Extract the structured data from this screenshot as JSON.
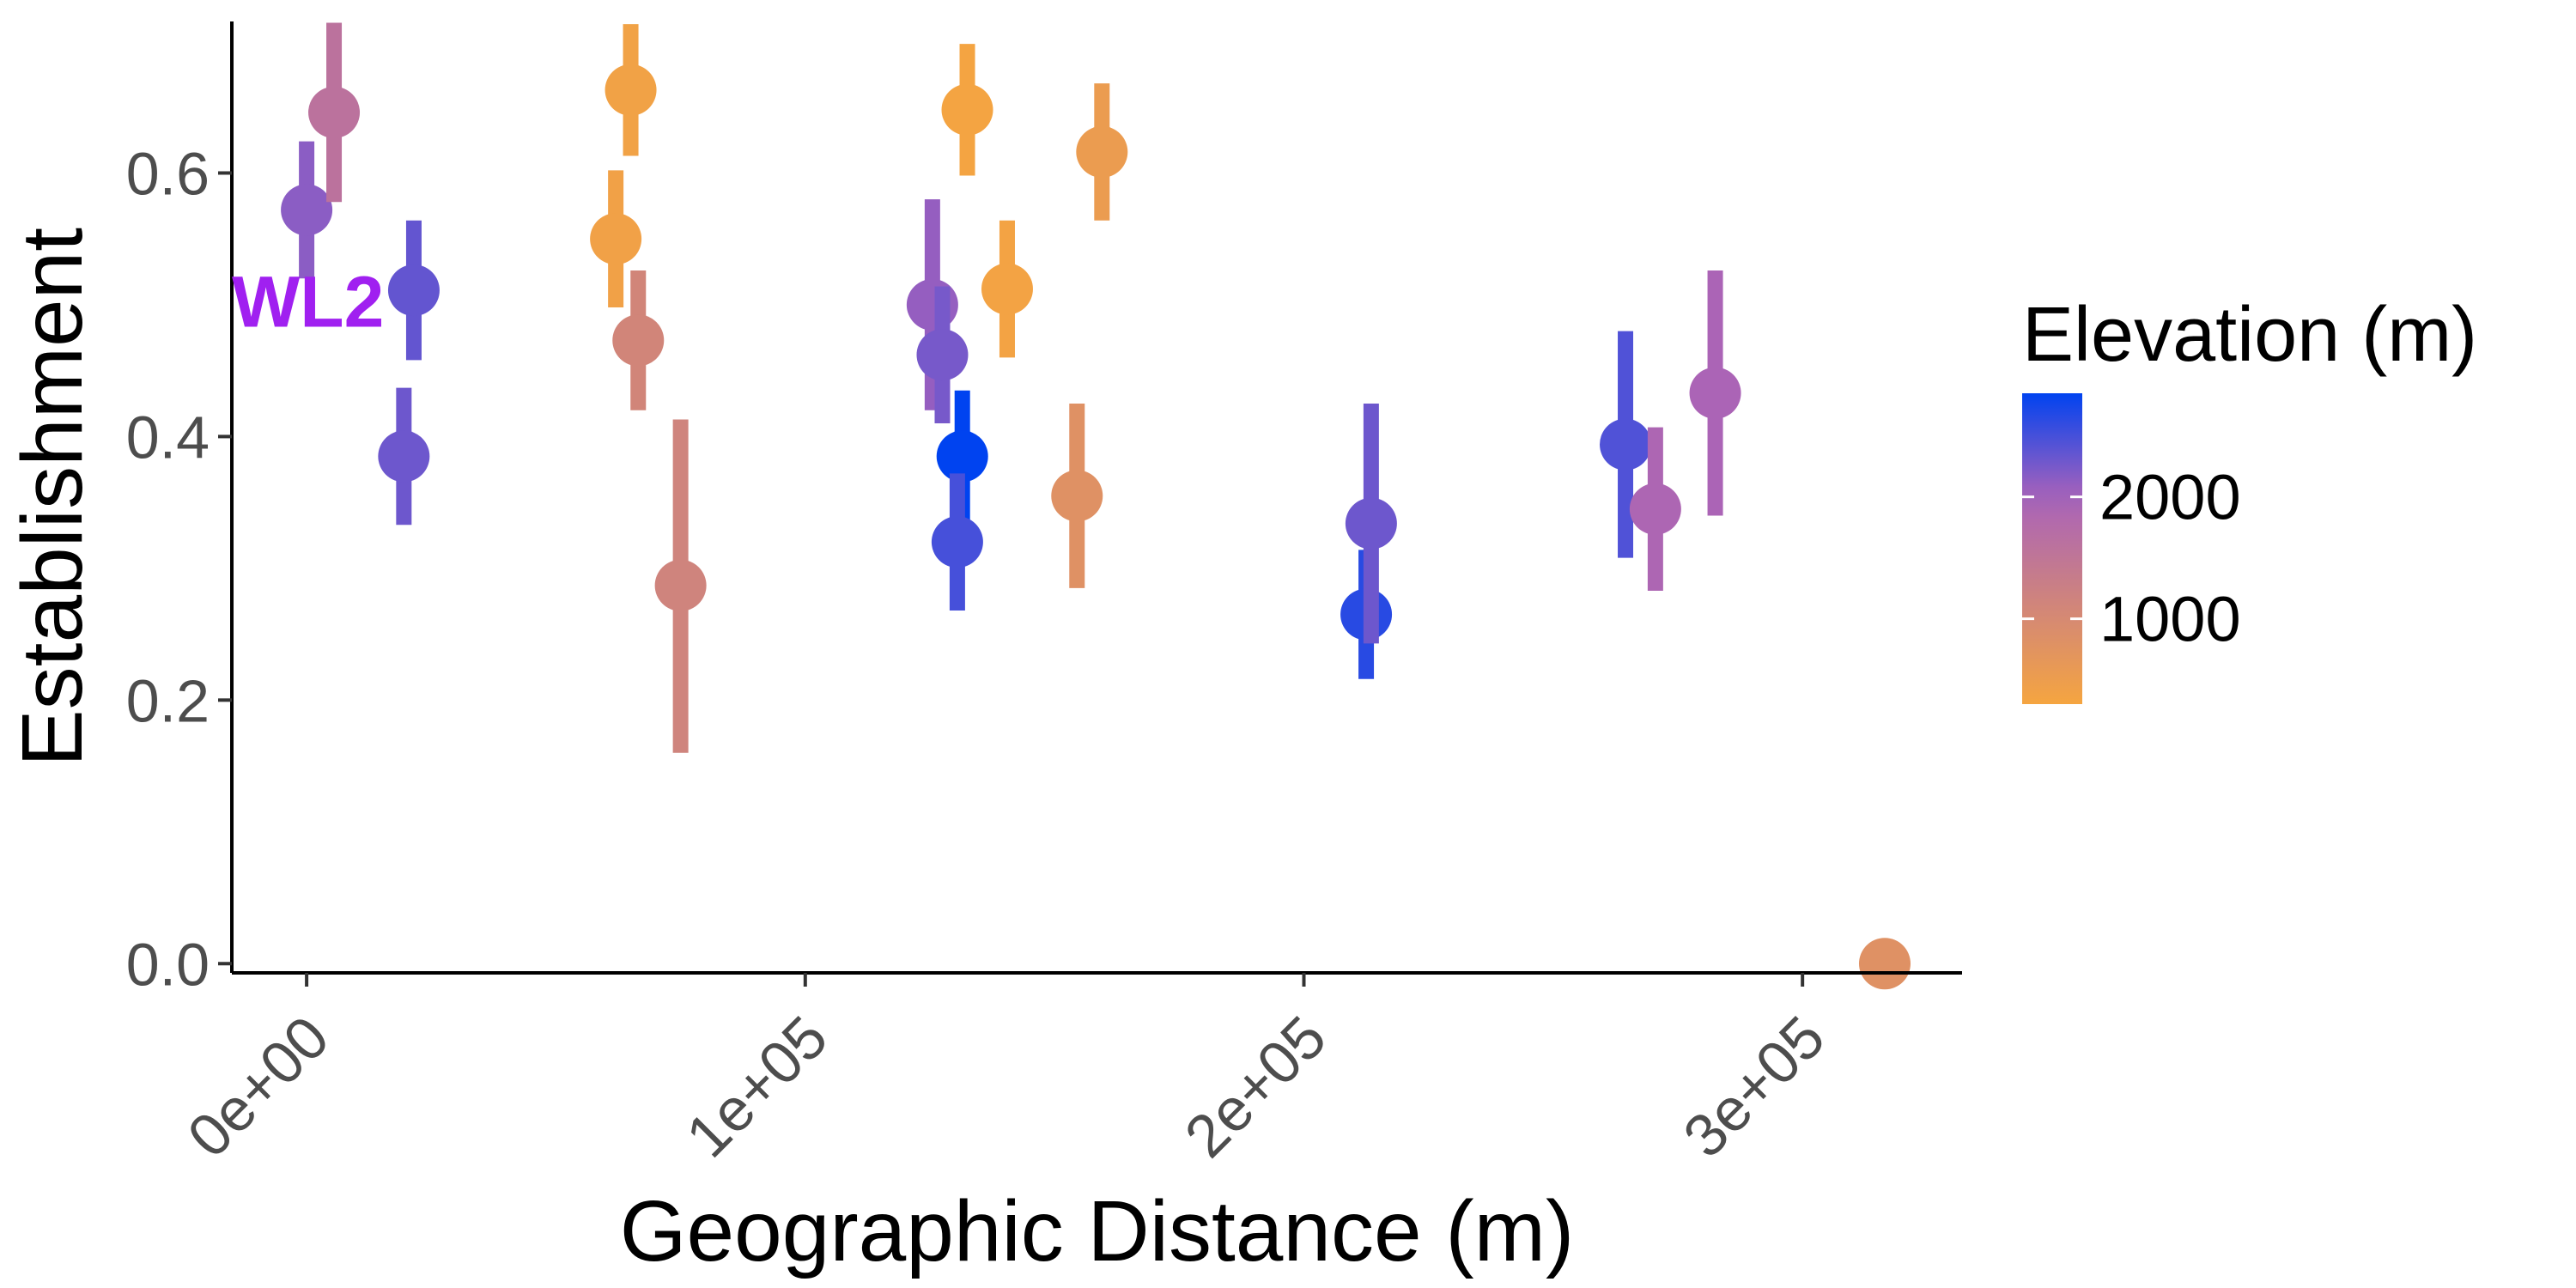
{
  "chart_data": {
    "type": "scatter",
    "xlabel": "Geographic Distance (m)",
    "ylabel": "Establishment",
    "xlim": [
      -15000,
      332000
    ],
    "ylim": [
      -0.007,
      0.715
    ],
    "x_ticks": [
      {
        "value": 0,
        "label": "0e+00"
      },
      {
        "value": 100000,
        "label": "1e+05"
      },
      {
        "value": 200000,
        "label": "2e+05"
      },
      {
        "value": 300000,
        "label": "3e+05"
      }
    ],
    "y_ticks": [
      {
        "value": 0.0,
        "label": "0.0"
      },
      {
        "value": 0.2,
        "label": "0.2"
      },
      {
        "value": 0.4,
        "label": "0.4"
      },
      {
        "value": 0.6,
        "label": "0.6"
      }
    ],
    "grid": false,
    "color_scale": {
      "title": "Elevation (m)",
      "min": 300,
      "max": 2850,
      "low_color": "#F5A540",
      "mid_color": "#A962BA",
      "mid_value": 2000,
      "high_color": "#0043F0",
      "ticks": [
        {
          "value": 1000,
          "label": "1000"
        },
        {
          "value": 2000,
          "label": "2000"
        }
      ],
      "legend_position": "right"
    },
    "annotations": [
      {
        "text": "WL2",
        "x": -15000,
        "y": 0.503,
        "color": "#A020F0"
      }
    ],
    "points": [
      {
        "x": 0,
        "y": 0.572,
        "ymin": 0.52,
        "ymax": 0.624,
        "elevation": 2150
      },
      {
        "x": 5500,
        "y": 0.646,
        "ymin": 0.578,
        "ymax": 0.714,
        "elevation": 1600
      },
      {
        "x": 21500,
        "y": 0.511,
        "ymin": 0.458,
        "ymax": 0.564,
        "elevation": 2350
      },
      {
        "x": 19500,
        "y": 0.385,
        "ymin": 0.333,
        "ymax": 0.437,
        "elevation": 2300
      },
      {
        "x": 62000,
        "y": 0.55,
        "ymin": 0.498,
        "ymax": 0.602,
        "elevation": 400
      },
      {
        "x": 65000,
        "y": 0.663,
        "ymin": 0.613,
        "ymax": 0.713,
        "elevation": 380
      },
      {
        "x": 66500,
        "y": 0.473,
        "ymin": 0.42,
        "ymax": 0.526,
        "elevation": 1100
      },
      {
        "x": 75000,
        "y": 0.287,
        "ymin": 0.16,
        "ymax": 0.413,
        "elevation": 1150
      },
      {
        "x": 125500,
        "y": 0.5,
        "ymin": 0.42,
        "ymax": 0.58,
        "elevation": 2100
      },
      {
        "x": 127500,
        "y": 0.462,
        "ymin": 0.41,
        "ymax": 0.514,
        "elevation": 2250
      },
      {
        "x": 131500,
        "y": 0.385,
        "ymin": 0.335,
        "ymax": 0.435,
        "elevation": 2850
      },
      {
        "x": 130500,
        "y": 0.32,
        "ymin": 0.268,
        "ymax": 0.372,
        "elevation": 2500
      },
      {
        "x": 132500,
        "y": 0.648,
        "ymin": 0.598,
        "ymax": 0.698,
        "elevation": 330
      },
      {
        "x": 140500,
        "y": 0.512,
        "ymin": 0.46,
        "ymax": 0.564,
        "elevation": 350
      },
      {
        "x": 154500,
        "y": 0.355,
        "ymin": 0.285,
        "ymax": 0.425,
        "elevation": 800
      },
      {
        "x": 159500,
        "y": 0.616,
        "ymin": 0.564,
        "ymax": 0.668,
        "elevation": 520
      },
      {
        "x": 212500,
        "y": 0.265,
        "ymin": 0.216,
        "ymax": 0.314,
        "elevation": 2650
      },
      {
        "x": 213500,
        "y": 0.334,
        "ymin": 0.243,
        "ymax": 0.425,
        "elevation": 2300
      },
      {
        "x": 264500,
        "y": 0.394,
        "ymin": 0.308,
        "ymax": 0.48,
        "elevation": 2450
      },
      {
        "x": 270500,
        "y": 0.345,
        "ymin": 0.283,
        "ymax": 0.407,
        "elevation": 1900
      },
      {
        "x": 282500,
        "y": 0.433,
        "ymin": 0.34,
        "ymax": 0.526,
        "elevation": 1950
      },
      {
        "x": 316500,
        "y": 0.0,
        "ymin": 0.0,
        "ymax": 0.0,
        "elevation": 800
      }
    ]
  }
}
